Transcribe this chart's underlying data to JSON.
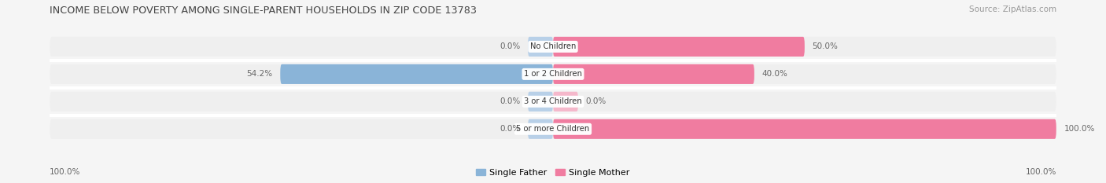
{
  "title": "INCOME BELOW POVERTY AMONG SINGLE-PARENT HOUSEHOLDS IN ZIP CODE 13783",
  "source": "Source: ZipAtlas.com",
  "categories": [
    "No Children",
    "1 or 2 Children",
    "3 or 4 Children",
    "5 or more Children"
  ],
  "single_father": [
    0.0,
    54.2,
    0.0,
    0.0
  ],
  "single_mother": [
    50.0,
    40.0,
    0.0,
    100.0
  ],
  "father_color": "#8ab4d8",
  "mother_color": "#f07ca0",
  "father_color_light": "#b8d0e8",
  "mother_color_light": "#f5b8cb",
  "bar_bg_color": "#e8e8e8",
  "row_bg_color": "#efefef",
  "bg_color": "#f5f5f5",
  "sep_color": "#ffffff",
  "label_color": "#666666",
  "title_color": "#444444",
  "legend_father": "Single Father",
  "legend_mother": "Single Mother",
  "axis_label_left": "100.0%",
  "axis_label_right": "100.0%",
  "max_value": 100.0,
  "stub_size": 5.0
}
